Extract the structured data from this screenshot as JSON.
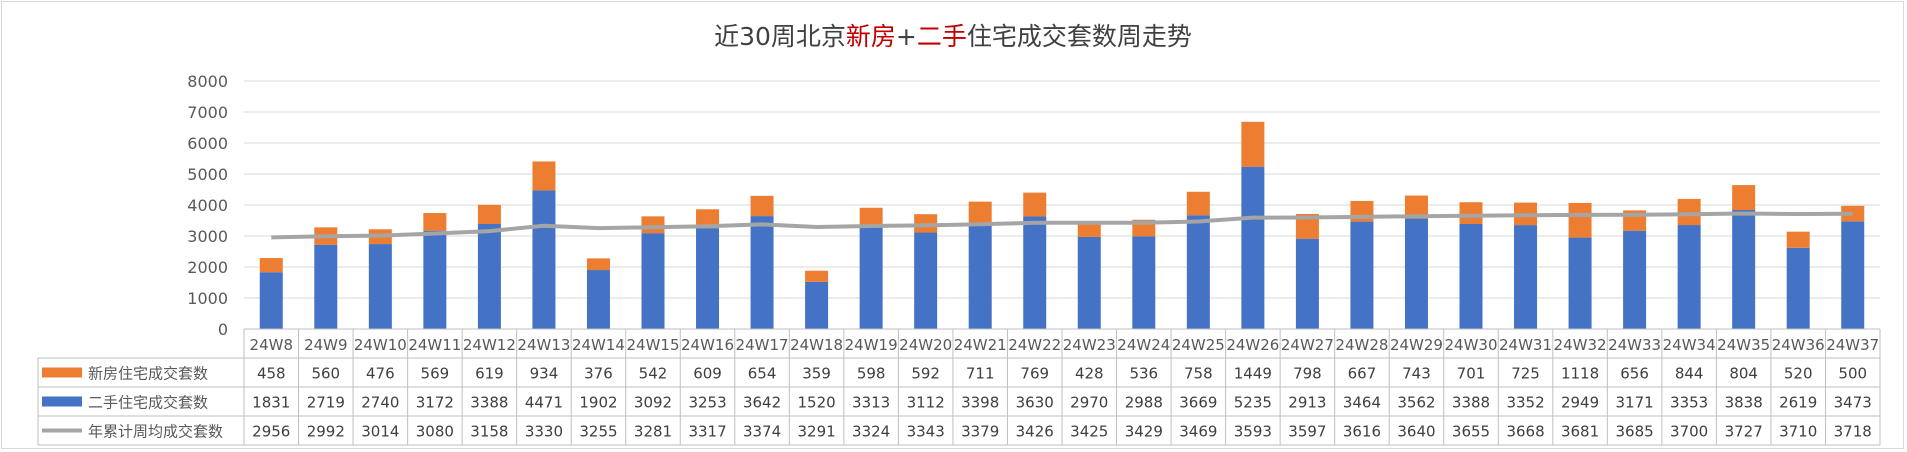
{
  "chart_data": {
    "type": "bar",
    "title_parts": [
      {
        "text": "近30周北京",
        "color": "#404040"
      },
      {
        "text": "新房",
        "color": "#c00000"
      },
      {
        "text": "+",
        "color": "#404040"
      },
      {
        "text": "二手",
        "color": "#c00000"
      },
      {
        "text": "住宅成交套数周走势",
        "color": "#404040"
      }
    ],
    "ylim": [
      0,
      8000
    ],
    "yticks": [
      0,
      1000,
      2000,
      3000,
      4000,
      5000,
      6000,
      7000,
      8000
    ],
    "grid": true,
    "legend_placement": "data-table-left",
    "categories": [
      "24W8",
      "24W9",
      "24W10",
      "24W11",
      "24W12",
      "24W13",
      "24W14",
      "24W15",
      "24W16",
      "24W17",
      "24W18",
      "24W19",
      "24W20",
      "24W21",
      "24W22",
      "24W23",
      "24W24",
      "24W25",
      "24W26",
      "24W27",
      "24W28",
      "24W29",
      "24W30",
      "24W31",
      "24W32",
      "24W33",
      "24W34",
      "24W35",
      "24W36",
      "24W37"
    ],
    "series": [
      {
        "name": "新房住宅成交套数",
        "kind": "stacked-bar",
        "color": "#ed7d31",
        "values": [
          458,
          560,
          476,
          569,
          619,
          934,
          376,
          542,
          609,
          654,
          359,
          598,
          592,
          711,
          769,
          428,
          536,
          758,
          1449,
          798,
          667,
          743,
          701,
          725,
          1118,
          656,
          844,
          804,
          520,
          500
        ]
      },
      {
        "name": "二手住宅成交套数",
        "kind": "stacked-bar",
        "color": "#4472c4",
        "values": [
          1831,
          2719,
          2740,
          3172,
          3388,
          4471,
          1902,
          3092,
          3253,
          3642,
          1520,
          3313,
          3112,
          3398,
          3630,
          2970,
          2988,
          3669,
          5235,
          2913,
          3464,
          3562,
          3388,
          3352,
          2949,
          3171,
          3353,
          3838,
          2619,
          3473
        ]
      },
      {
        "name": "年累计周均成交套数",
        "kind": "line",
        "color": "#a5a5a5",
        "values": [
          2956,
          2992,
          3014,
          3080,
          3158,
          3330,
          3255,
          3281,
          3317,
          3374,
          3291,
          3324,
          3343,
          3379,
          3426,
          3425,
          3429,
          3469,
          3593,
          3597,
          3616,
          3640,
          3655,
          3668,
          3681,
          3685,
          3700,
          3727,
          3710,
          3718
        ]
      }
    ],
    "table_order": [
      0,
      1,
      2
    ]
  }
}
